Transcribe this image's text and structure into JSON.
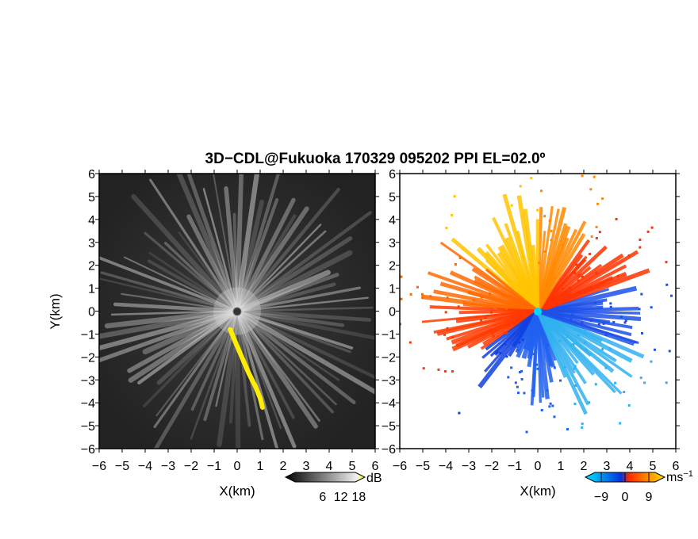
{
  "title": "3D−CDL@Fukuoka 170329 095202 PPI EL=02.0º",
  "chart_data": [
    {
      "type": "heatmap",
      "panel": "left",
      "description_hidden": true,
      "xlabel": "X(km)",
      "ylabel": "Y(km)",
      "xlim": [
        -6,
        6
      ],
      "ylim": [
        -6,
        6
      ],
      "xticks": [
        -6,
        -5,
        -4,
        -3,
        -2,
        -1,
        0,
        1,
        2,
        3,
        4,
        5,
        6
      ],
      "yticks": [
        6,
        5,
        4,
        3,
        2,
        1,
        0,
        -1,
        -2,
        -3,
        -4,
        -5,
        -6
      ],
      "colorbar": {
        "unit": "dB",
        "ticks": [
          6,
          12,
          18
        ],
        "colors": [
          "#000000",
          "#ffffff",
          "#ffff00"
        ]
      },
      "highlight_color": "#ffee00",
      "highlight_path": [
        [
          -0.3,
          -0.8
        ],
        [
          -0.1,
          -1.3
        ],
        [
          0.2,
          -2.0
        ],
        [
          0.5,
          -2.7
        ],
        [
          0.8,
          -3.3
        ],
        [
          1.0,
          -3.8
        ],
        [
          1.1,
          -4.2
        ]
      ]
    },
    {
      "type": "heatmap",
      "panel": "right",
      "xlabel": "X(km)",
      "xlim": [
        -6,
        6
      ],
      "ylim": [
        -6,
        6
      ],
      "xticks": [
        -6,
        -5,
        -4,
        -3,
        -2,
        -1,
        0,
        1,
        2,
        3,
        4,
        5,
        6
      ],
      "yticks": [
        6,
        5,
        4,
        3,
        2,
        1,
        0,
        -1,
        -2,
        -3,
        -4,
        -5,
        -6
      ],
      "colorbar": {
        "unit": "ms",
        "unit_exp": "−1",
        "ticks": [
          -9,
          0,
          9
        ],
        "colors": [
          "#00e5ff",
          "#0033dd",
          "#ff2a00",
          "#ffe000"
        ]
      }
    }
  ]
}
